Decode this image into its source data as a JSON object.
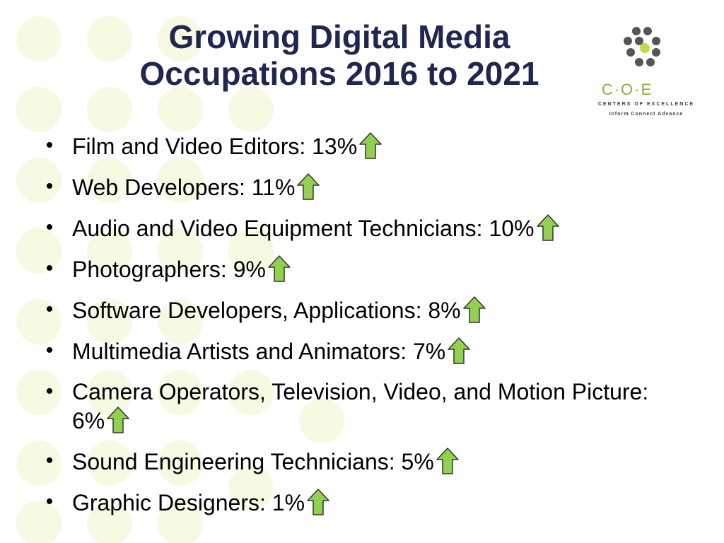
{
  "title_line1": "Growing Digital Media",
  "title_line2": "Occupations 2016 to 2021",
  "logo": {
    "name": "C·O·E",
    "subtitle": "CENTERS OF EXCELLENCE",
    "tagline": "Inform  Connect  Advance",
    "accent": "#c9d84a",
    "dark": "#555555"
  },
  "bullet_glyph": "•",
  "arrow_icon": "up-arrow-icon",
  "arrow_color": "#92d050",
  "items": [
    {
      "label": "Film and Video Editors: 13%"
    },
    {
      "label": "Web Developers: 11%"
    },
    {
      "label": "Audio and Video Equipment Technicians: 10%"
    },
    {
      "label": "Photographers: 9%"
    },
    {
      "label": "Software Developers, Applications: 8%"
    },
    {
      "label": "Multimedia Artists and Animators: 7%"
    },
    {
      "label": "Camera Operators, Television, Video, and Motion Picture: 6%"
    },
    {
      "label": "Sound Engineering Technicians: 5%"
    },
    {
      "label": "Graphic Designers: 1%"
    }
  ]
}
